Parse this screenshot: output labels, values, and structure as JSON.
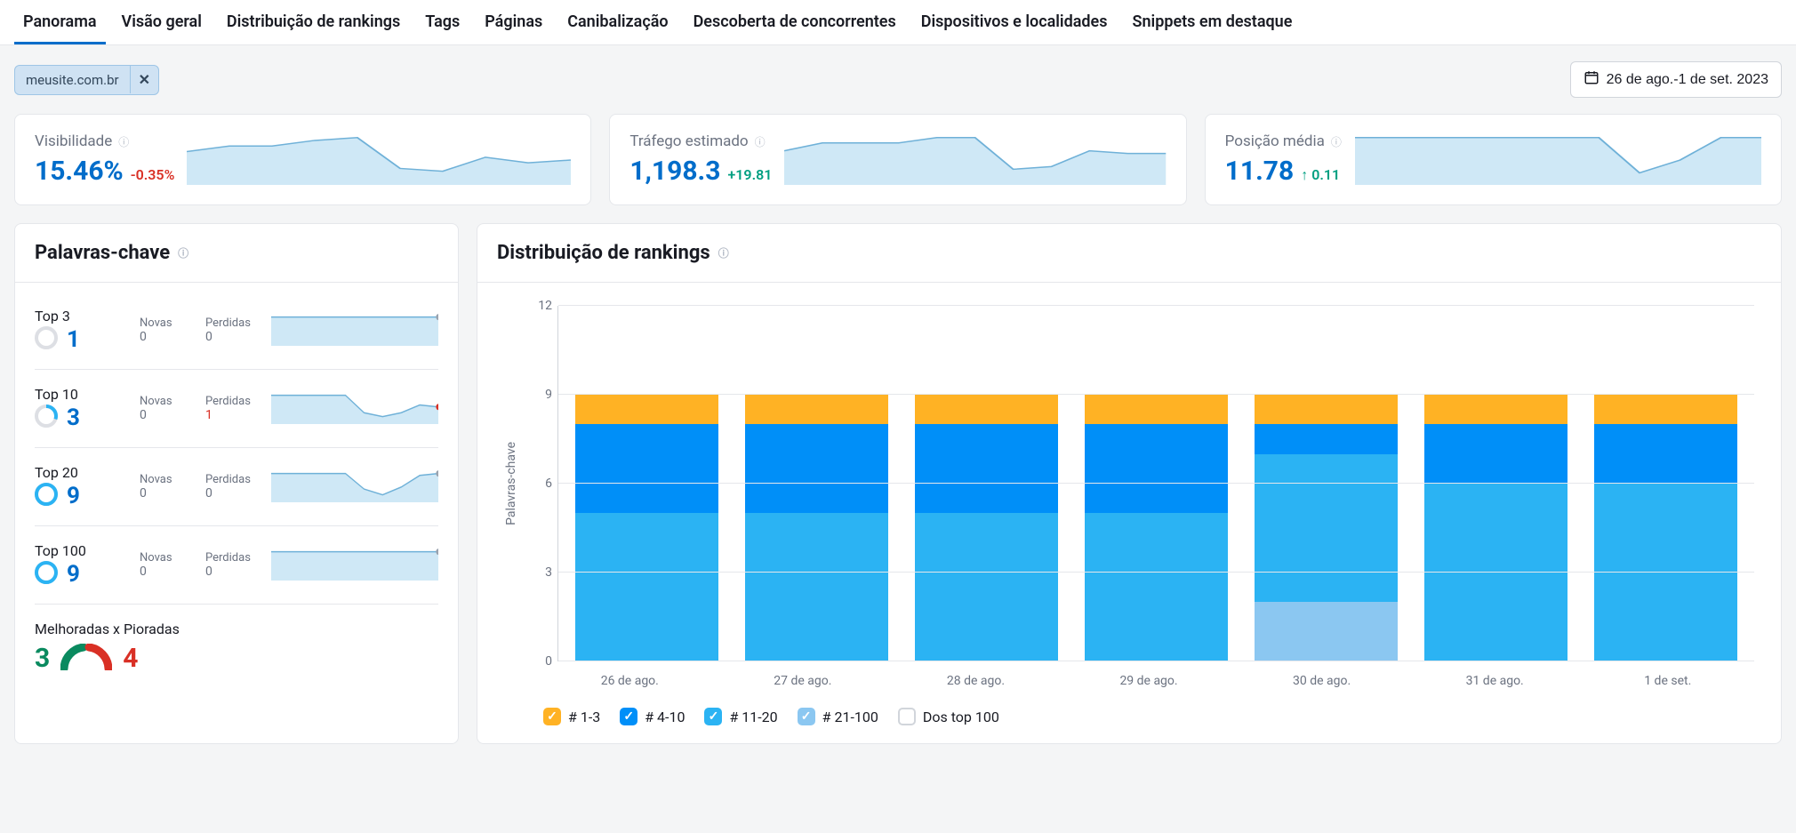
{
  "tabs": {
    "items": [
      "Panorama",
      "Visão geral",
      "Distribuição de rankings",
      "Tags",
      "Páginas",
      "Canibalização",
      "Descoberta de concorrentes",
      "Dispositivos e localidades",
      "Snippets em destaque"
    ],
    "active_index": 0
  },
  "filter": {
    "domain_chip": "meusite.com.br",
    "date_range": "26 de ago.-1 de set. 2023"
  },
  "colors": {
    "primary": "#006dca",
    "spark_fill": "#cfe8f6",
    "spark_stroke": "#6fb1d8",
    "pos": "#009f81",
    "neg": "#d93025",
    "ring_track": "#dddfe4",
    "s1": "#ffb224",
    "s2": "#008ff8",
    "s3": "#2bb3f3",
    "s4": "#8bc7f1",
    "grid": "#e5e7eb",
    "text_muted": "#6b7280"
  },
  "metrics": [
    {
      "title": "Visibilidade",
      "value": "15.46%",
      "delta": "-0.35%",
      "delta_dir": "neg",
      "spark": [
        22,
        26,
        26,
        30,
        32,
        10,
        8,
        18,
        14,
        16
      ]
    },
    {
      "title": "Tráfego estimado",
      "value": "1,198.3",
      "delta": "+19.81",
      "delta_dir": "pos",
      "spark": [
        24,
        30,
        30,
        30,
        34,
        34,
        10,
        12,
        24,
        22,
        22
      ]
    },
    {
      "title": "Posição média",
      "value": "11.78",
      "delta": "↑ 0.11",
      "delta_dir": "pos",
      "spark": [
        28,
        28,
        28,
        28,
        28,
        28,
        28,
        6,
        14,
        28,
        28
      ]
    }
  ],
  "keywords_panel": {
    "title": "Palavras-chave",
    "new_label": "Novas",
    "lost_label": "Perdidas",
    "rows": [
      {
        "label": "Top 3",
        "value": "1",
        "ring_pct": 0.1,
        "ring_color": "#dddfe4",
        "new": "0",
        "lost": "0",
        "lost_neg": false,
        "spark": [
          6,
          6,
          6,
          6,
          6,
          6,
          6,
          6,
          6,
          6
        ],
        "dot": "#9aa3af"
      },
      {
        "label": "Top 10",
        "value": "3",
        "ring_pct": 0.3,
        "ring_color": "#2bb3f3",
        "new": "0",
        "lost": "1",
        "lost_neg": true,
        "spark": [
          28,
          28,
          28,
          28,
          28,
          10,
          6,
          10,
          18,
          16
        ],
        "dot": "#d93025"
      },
      {
        "label": "Top 20",
        "value": "9",
        "ring_pct": 1.0,
        "ring_color": "#2bb3f3",
        "new": "0",
        "lost": "0",
        "lost_neg": false,
        "spark": [
          28,
          28,
          28,
          28,
          28,
          12,
          6,
          14,
          26,
          28
        ],
        "dot": "#9aa3af"
      },
      {
        "label": "Top 100",
        "value": "9",
        "ring_pct": 1.0,
        "ring_color": "#2bb3f3",
        "new": "0",
        "lost": "0",
        "lost_neg": false,
        "spark": [
          6,
          6,
          6,
          6,
          6,
          6,
          6,
          6,
          6,
          6
        ],
        "dot": "#9aa3af"
      }
    ],
    "improved": {
      "title": "Melhoradas x Pioradas",
      "good": "3",
      "bad": "4"
    }
  },
  "distribution_panel": {
    "title": "Distribuição de rankings",
    "y_label": "Palavras-chave",
    "y_max": 12,
    "y_ticks": [
      0,
      3,
      6,
      9,
      12
    ],
    "categories": [
      "26 de ago.",
      "27 de ago.",
      "28 de ago.",
      "29 de ago.",
      "30 de ago.",
      "31 de ago.",
      "1 de set."
    ],
    "series_colors": [
      "#ffb224",
      "#008ff8",
      "#2bb3f3",
      "#8bc7f1"
    ],
    "stacks": [
      [
        1,
        3,
        5,
        0
      ],
      [
        1,
        3,
        5,
        0
      ],
      [
        1,
        3,
        5,
        0
      ],
      [
        1,
        3,
        5,
        0
      ],
      [
        1,
        1,
        5,
        2
      ],
      [
        1,
        2,
        6,
        0
      ],
      [
        1,
        2,
        6,
        0
      ]
    ],
    "legend": [
      {
        "label": "# 1-3",
        "color": "#ffb224",
        "checked": true
      },
      {
        "label": "# 4-10",
        "color": "#008ff8",
        "checked": true
      },
      {
        "label": "# 11-20",
        "color": "#2bb3f3",
        "checked": true
      },
      {
        "label": "# 21-100",
        "color": "#8bc7f1",
        "checked": true
      },
      {
        "label": "Dos top 100",
        "color": "",
        "checked": false
      }
    ]
  }
}
